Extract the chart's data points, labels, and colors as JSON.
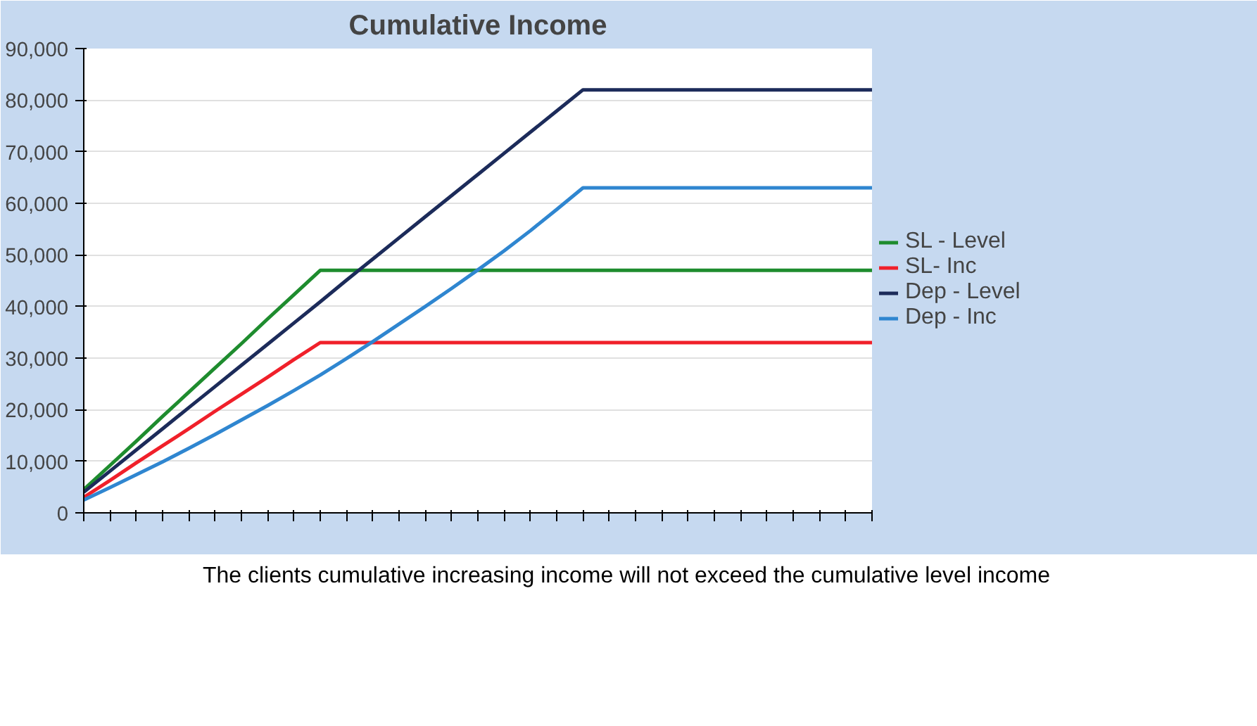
{
  "chart_data": {
    "type": "line",
    "title": "Cumulative Income",
    "annotations": [
      "The clients cumulative increasing income will not exceed the cumulative level income"
    ],
    "categories": [
      null,
      null,
      null,
      null,
      null,
      null,
      null,
      null,
      null,
      null,
      null,
      null,
      null,
      null,
      null,
      null,
      null,
      null,
      null,
      null,
      null,
      null,
      null,
      null,
      null,
      null,
      null,
      null,
      null,
      null,
      null
    ],
    "ylim": [
      0,
      90000
    ],
    "yticks": [
      {
        "value": 0,
        "label": "0"
      },
      {
        "value": 10000,
        "label": "10,000"
      },
      {
        "value": 20000,
        "label": "20,000"
      },
      {
        "value": 30000,
        "label": "30,000"
      },
      {
        "value": 40000,
        "label": "40,000"
      },
      {
        "value": 50000,
        "label": "50,000"
      },
      {
        "value": 60000,
        "label": "60,000"
      },
      {
        "value": 70000,
        "label": "70,000"
      },
      {
        "value": 80000,
        "label": "80,000"
      },
      {
        "value": 90000,
        "label": "90,000"
      }
    ],
    "tick_labels": "y",
    "grid": "y",
    "legend": "right",
    "marker": "none",
    "line_style": "solid",
    "series": [
      {
        "name": "SL - Level",
        "color": "#1e8c2e",
        "values": [
          4500,
          9200,
          13900,
          18700,
          23400,
          28100,
          32800,
          37600,
          42300,
          47000,
          47000,
          47000,
          47000,
          47000,
          47000,
          47000,
          47000,
          47000,
          47000,
          47000,
          47000,
          47000,
          47000,
          47000,
          47000,
          47000,
          47000,
          47000,
          47000,
          47000,
          47000
        ]
      },
      {
        "name": "SL- Inc",
        "color": "#f0202a",
        "values": [
          3000,
          6300,
          9700,
          13000,
          16300,
          19700,
          23000,
          26300,
          29700,
          33000,
          33000,
          33000,
          33000,
          33000,
          33000,
          33000,
          33000,
          33000,
          33000,
          33000,
          33000,
          33000,
          33000,
          33000,
          33000,
          33000,
          33000,
          33000,
          33000,
          33000,
          33000
        ]
      },
      {
        "name": "Dep - Level",
        "color": "#1c2b5a",
        "values": [
          4000,
          8100,
          12200,
          16300,
          20400,
          24500,
          28600,
          32700,
          36800,
          40900,
          45100,
          49200,
          53300,
          57400,
          61500,
          65600,
          69700,
          73800,
          77900,
          82000,
          82000,
          82000,
          82000,
          82000,
          82000,
          82000,
          82000,
          82000,
          82000,
          82000,
          82000
        ]
      },
      {
        "name": "Dep - Inc",
        "color": "#2f86d0",
        "values": [
          2500,
          4900,
          7400,
          9900,
          12500,
          15200,
          18000,
          20800,
          23700,
          26700,
          29900,
          33200,
          36600,
          40000,
          43500,
          47100,
          50800,
          54700,
          58800,
          63000,
          63000,
          63000,
          63000,
          63000,
          63000,
          63000,
          63000,
          63000,
          63000,
          63000,
          63000
        ]
      }
    ]
  }
}
